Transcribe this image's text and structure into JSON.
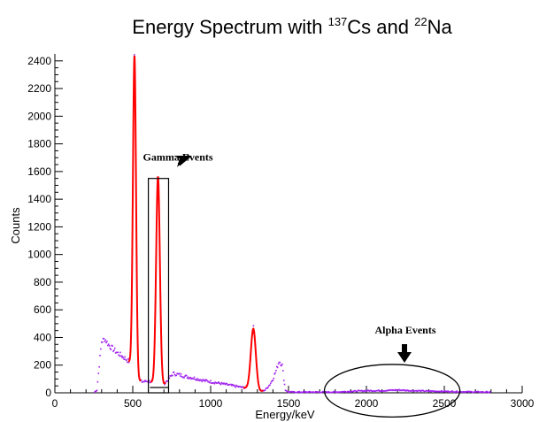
{
  "chart_data": {
    "type": "scatter",
    "title": {
      "prefix": "Energy Spectrum with ",
      "sup1": "137",
      "mid1": "Cs and ",
      "sup2": "22",
      "suffix": "Na"
    },
    "xlabel": "Energy/keV",
    "ylabel": "Counts",
    "xlim": [
      0,
      3000
    ],
    "ylim": [
      0,
      2450
    ],
    "xticks": [
      0,
      500,
      1000,
      1500,
      2000,
      2500,
      3000
    ],
    "yticks": [
      0,
      200,
      400,
      600,
      800,
      1000,
      1200,
      1400,
      1600,
      1800,
      2000,
      2200,
      2400
    ],
    "grid": false,
    "colors": {
      "data": "#a020f0",
      "fit": "#ff0000",
      "annotation": "#000000"
    },
    "peaks": [
      {
        "center": 511,
        "height": 2300,
        "sigma": 10
      },
      {
        "center": 662,
        "height": 1500,
        "sigma": 12
      },
      {
        "center": 1274,
        "height": 440,
        "sigma": 16
      }
    ],
    "continuum": {
      "x": [
        250,
        270,
        285,
        300,
        320,
        350,
        400,
        450,
        490,
        505,
        530,
        560,
        600,
        640,
        680,
        700,
        730,
        760,
        800,
        850,
        900,
        950,
        1000,
        1050,
        1100,
        1150,
        1200,
        1250,
        1290,
        1320,
        1350,
        1380,
        1400,
        1420,
        1440,
        1460,
        1470,
        1480,
        1500,
        1600,
        1700,
        1800,
        1900,
        2000,
        2100,
        2200,
        2300,
        2400,
        2500,
        2600,
        2700,
        2800
      ],
      "y": [
        0,
        20,
        200,
        370,
        390,
        340,
        290,
        250,
        210,
        150,
        95,
        80,
        85,
        70,
        60,
        60,
        100,
        140,
        130,
        115,
        105,
        90,
        80,
        70,
        60,
        50,
        40,
        30,
        20,
        10,
        20,
        60,
        100,
        160,
        230,
        200,
        100,
        20,
        5,
        5,
        5,
        5,
        10,
        15,
        15,
        20,
        15,
        12,
        10,
        8,
        6,
        5
      ]
    },
    "annotations": [
      {
        "text": "Gamma Events",
        "x": 790,
        "y": 1680
      },
      {
        "text": "Alpha Events",
        "x": 2250,
        "y": 430
      }
    ],
    "gamma_box": {
      "x0": 600,
      "x1": 730,
      "y0": 0,
      "y1": 1550
    },
    "gamma_box_notch": {
      "x0": 610,
      "x1": 730
    },
    "alpha_ellipse": {
      "cx": 2165,
      "cy": 15,
      "rx": 435,
      "ry": 190
    }
  }
}
